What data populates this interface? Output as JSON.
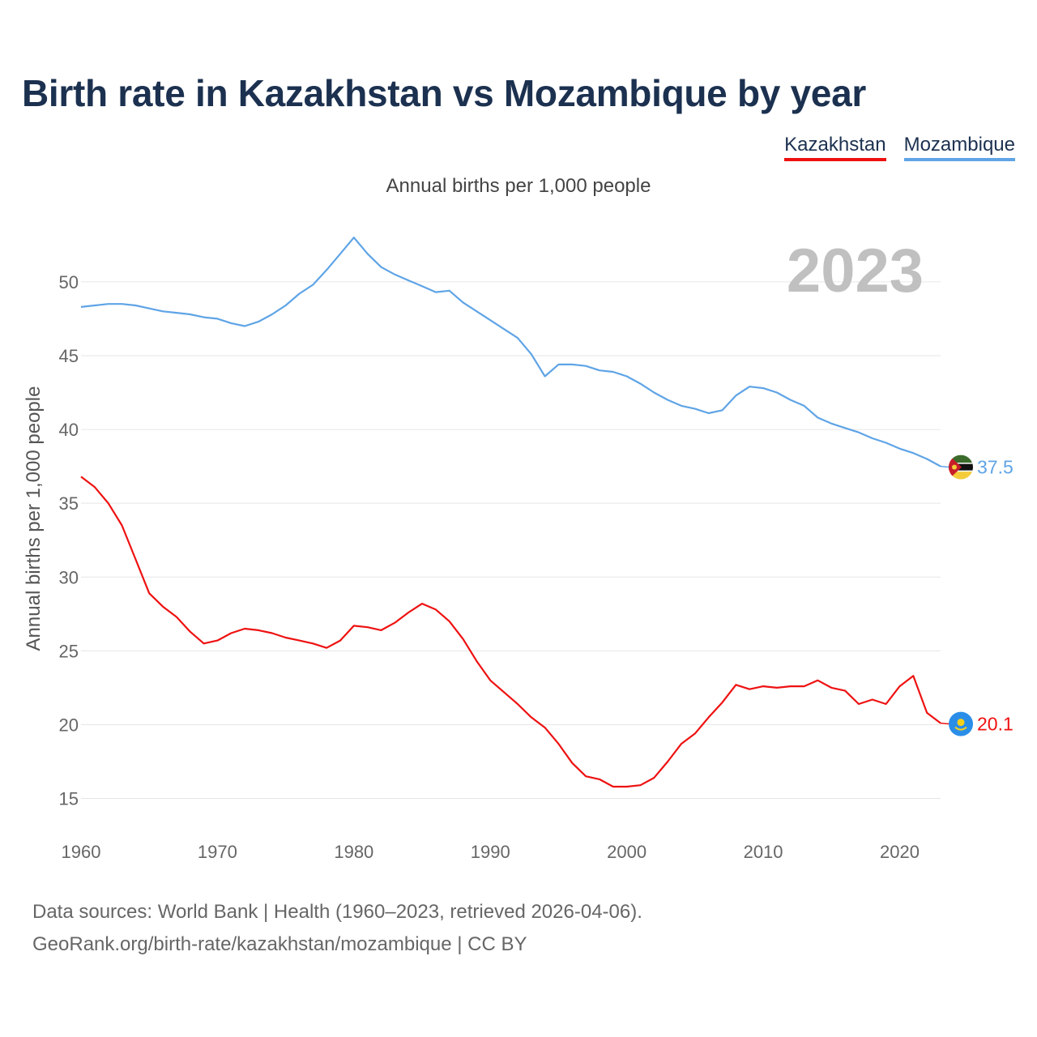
{
  "title": "Birth rate in Kazakhstan vs Mozambique by year",
  "subtitle": "Annual births per 1,000 people",
  "legend": [
    {
      "label": "Kazakhstan",
      "color": "#ee1111"
    },
    {
      "label": "Mozambique",
      "color": "#5fa4e6"
    }
  ],
  "source": {
    "line1": "Data sources: World Bank | Health (1960–2023, retrieved 2026-04-06).",
    "line2": "GeoRank.org/birth-rate/kazakhstan/mozambique | CC BY"
  },
  "chart_data": {
    "type": "line",
    "title": "Birth rate in Kazakhstan vs Mozambique by year",
    "xlabel": "",
    "ylabel": "Annual births per 1,000 people",
    "current_year": "2023",
    "xlim": [
      1960,
      2023
    ],
    "ylim": [
      13,
      54
    ],
    "yticks": [
      15,
      20,
      25,
      30,
      35,
      40,
      45,
      50
    ],
    "xticks": [
      1960,
      1970,
      1980,
      1990,
      2000,
      2010,
      2020
    ],
    "grid": true,
    "x": [
      1960,
      1961,
      1962,
      1963,
      1964,
      1965,
      1966,
      1967,
      1968,
      1969,
      1970,
      1971,
      1972,
      1973,
      1974,
      1975,
      1976,
      1977,
      1978,
      1979,
      1980,
      1981,
      1982,
      1983,
      1984,
      1985,
      1986,
      1987,
      1988,
      1989,
      1990,
      1991,
      1992,
      1993,
      1994,
      1995,
      1996,
      1997,
      1998,
      1999,
      2000,
      2001,
      2002,
      2003,
      2004,
      2005,
      2006,
      2007,
      2008,
      2009,
      2010,
      2011,
      2012,
      2013,
      2014,
      2015,
      2016,
      2017,
      2018,
      2019,
      2020,
      2021,
      2022,
      2023
    ],
    "series": [
      {
        "name": "Kazakhstan",
        "color": "#ee1111",
        "end_label": "20.1",
        "flag": "kazakhstan-flag",
        "values": [
          36.8,
          36.1,
          35.0,
          33.5,
          31.2,
          28.9,
          28.0,
          27.3,
          26.3,
          25.5,
          25.7,
          26.2,
          26.5,
          26.4,
          26.2,
          25.9,
          25.7,
          25.5,
          25.2,
          25.7,
          26.7,
          26.6,
          26.4,
          26.9,
          27.6,
          28.2,
          27.8,
          27.0,
          25.8,
          24.3,
          23.0,
          22.2,
          21.4,
          20.5,
          19.8,
          18.7,
          17.4,
          16.5,
          16.3,
          15.8,
          15.8,
          15.9,
          16.4,
          17.5,
          18.7,
          19.4,
          20.5,
          21.5,
          22.7,
          22.4,
          22.6,
          22.5,
          22.6,
          22.6,
          23.0,
          22.5,
          22.3,
          21.4,
          21.7,
          21.4,
          22.6,
          23.3,
          20.8,
          20.1
        ]
      },
      {
        "name": "Mozambique",
        "color": "#5fa4e6",
        "end_label": "37.5",
        "flag": "mozambique-flag",
        "values": [
          48.3,
          48.4,
          48.5,
          48.5,
          48.4,
          48.2,
          48.0,
          47.9,
          47.8,
          47.6,
          47.5,
          47.2,
          47.0,
          47.3,
          47.8,
          48.4,
          49.2,
          49.8,
          50.8,
          51.9,
          53.0,
          51.9,
          51.0,
          50.5,
          50.1,
          49.7,
          49.3,
          49.4,
          48.6,
          48.0,
          47.4,
          46.8,
          46.2,
          45.1,
          43.6,
          44.4,
          44.4,
          44.3,
          44.0,
          43.9,
          43.6,
          43.1,
          42.5,
          42.0,
          41.6,
          41.4,
          41.1,
          41.3,
          42.3,
          42.9,
          42.8,
          42.5,
          42.0,
          41.6,
          40.8,
          40.4,
          40.1,
          39.8,
          39.4,
          39.1,
          38.7,
          38.4,
          38.0,
          37.5
        ]
      }
    ]
  }
}
